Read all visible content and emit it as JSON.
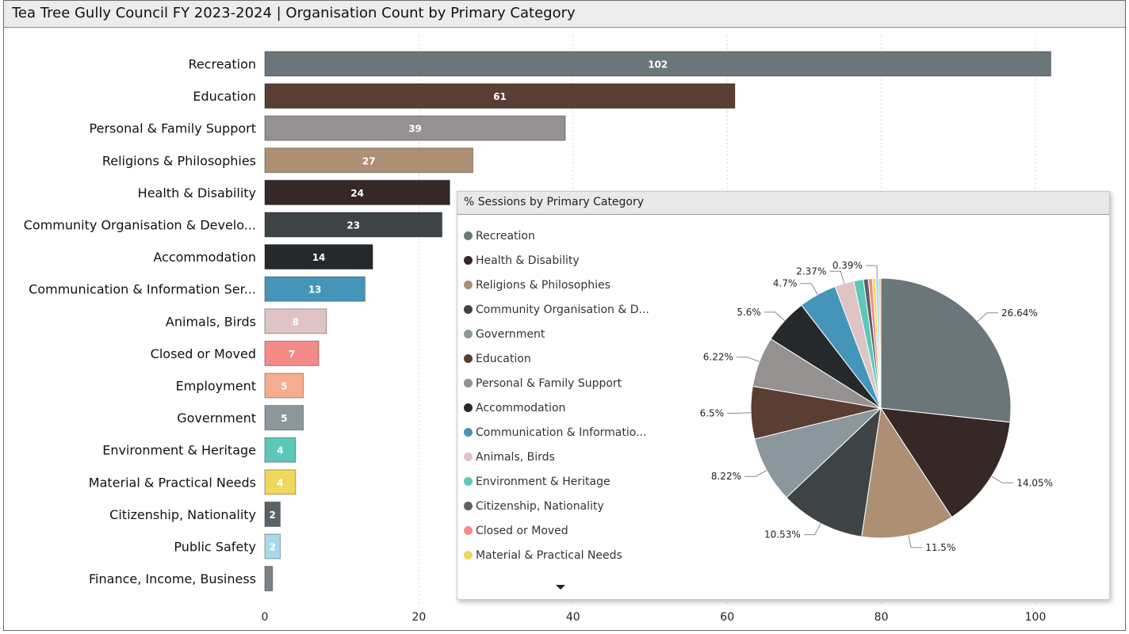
{
  "title": "Tea Tree Gully Council FY 2023-2024 | Organisation Count by Primary Category",
  "chart_data": [
    {
      "type": "bar",
      "orientation": "horizontal",
      "title": "Tea Tree Gully Council FY 2023-2024 | Organisation Count by Primary Category",
      "xlim": [
        0,
        110
      ],
      "x_ticks": [
        0,
        20,
        40,
        60,
        80,
        100
      ],
      "grid": true,
      "categories": [
        "Recreation",
        "Education",
        "Personal & Family Support",
        "Religions & Philosophies",
        "Health & Disability",
        "Community Organisation & Develo...",
        "Accommodation",
        "Communication & Information Ser...",
        "Animals, Birds",
        "Closed or Moved",
        "Employment",
        "Government",
        "Environment & Heritage",
        "Material & Practical Needs",
        "Citizenship, Nationality",
        "Public Safety",
        "Finance, Income, Business"
      ],
      "values": [
        102,
        61,
        39,
        27,
        24,
        23,
        14,
        13,
        8,
        7,
        5,
        5,
        4,
        4,
        2,
        2,
        1
      ],
      "data_labels": [
        "102",
        "61",
        "39",
        "27",
        "24",
        "23",
        "14",
        "13",
        "8",
        "7",
        "5",
        "5",
        "4",
        "4",
        "2",
        "2",
        ""
      ],
      "colors": [
        "#6b767a",
        "#5a3d33",
        "#959190",
        "#ad8f74",
        "#352827",
        "#3e4446",
        "#26292b",
        "#4595b9",
        "#e0c3c4",
        "#f58a87",
        "#f6ad8d",
        "#8b979c",
        "#5bc8ba",
        "#f0d85d",
        "#5b6266",
        "#a7d9ee",
        "#7b8286"
      ],
      "label_colors": [
        "#ffffff",
        "#ffffff",
        "#ffffff",
        "#ffffff",
        "#ffffff",
        "#ffffff",
        "#ffffff",
        "#ffffff",
        "#ffffff",
        "#ffffff",
        "#ffffff",
        "#ffffff",
        "#ffffff",
        "#ffffff",
        "#ffffff",
        "#ffffff",
        "#ffffff"
      ]
    },
    {
      "type": "pie",
      "title": "% Sessions by Primary Category",
      "legend_position": "left",
      "legend": [
        "Recreation",
        "Health & Disability",
        "Religions & Philosophies",
        "Community Organisation & D...",
        "Government",
        "Education",
        "Personal & Family Support",
        "Accommodation",
        "Communication & Informatio...",
        "Animals, Birds",
        "Environment & Heritage",
        "Citizenship, Nationality",
        "Closed or Moved",
        "Material & Practical Needs"
      ],
      "slices": [
        {
          "category": "Recreation",
          "value": 26.64,
          "label": "26.64%",
          "color": "#6b767a"
        },
        {
          "category": "Health & Disability",
          "value": 14.05,
          "label": "14.05%",
          "color": "#352827"
        },
        {
          "category": "Religions & Philosophies",
          "value": 11.5,
          "label": "11.5%",
          "color": "#ad8f74"
        },
        {
          "category": "Community Organisation & D...",
          "value": 10.53,
          "label": "10.53%",
          "color": "#3e4446"
        },
        {
          "category": "Government",
          "value": 8.22,
          "label": "8.22%",
          "color": "#8b979c"
        },
        {
          "category": "Education",
          "value": 6.5,
          "label": "6.5%",
          "color": "#5a3d33"
        },
        {
          "category": "Personal & Family Support",
          "value": 6.22,
          "label": "6.22%",
          "color": "#959190"
        },
        {
          "category": "Accommodation",
          "value": 5.6,
          "label": "5.6%",
          "color": "#26292b"
        },
        {
          "category": "Communication & Informatio...",
          "value": 4.7,
          "label": "4.7%",
          "color": "#4595b9"
        },
        {
          "category": "Animals, Birds",
          "value": 2.37,
          "label": "2.37%",
          "color": "#e0c3c4"
        },
        {
          "category": "Environment & Heritage",
          "value": 1.2,
          "label": "",
          "color": "#5bc8ba"
        },
        {
          "category": "Citizenship, Nationality",
          "value": 0.6,
          "label": "",
          "color": "#5b6266"
        },
        {
          "category": "Closed or Moved",
          "value": 0.5,
          "label": "",
          "color": "#f58a87"
        },
        {
          "category": "Material & Practical Needs",
          "value": 0.4,
          "label": "",
          "color": "#f0d85d"
        },
        {
          "category": "",
          "value": 0.39,
          "label": "0.39%",
          "color": "#a7d9ee"
        },
        {
          "category": "",
          "value": 0.25,
          "label": "",
          "color": "#f6ad8d"
        }
      ]
    }
  ]
}
